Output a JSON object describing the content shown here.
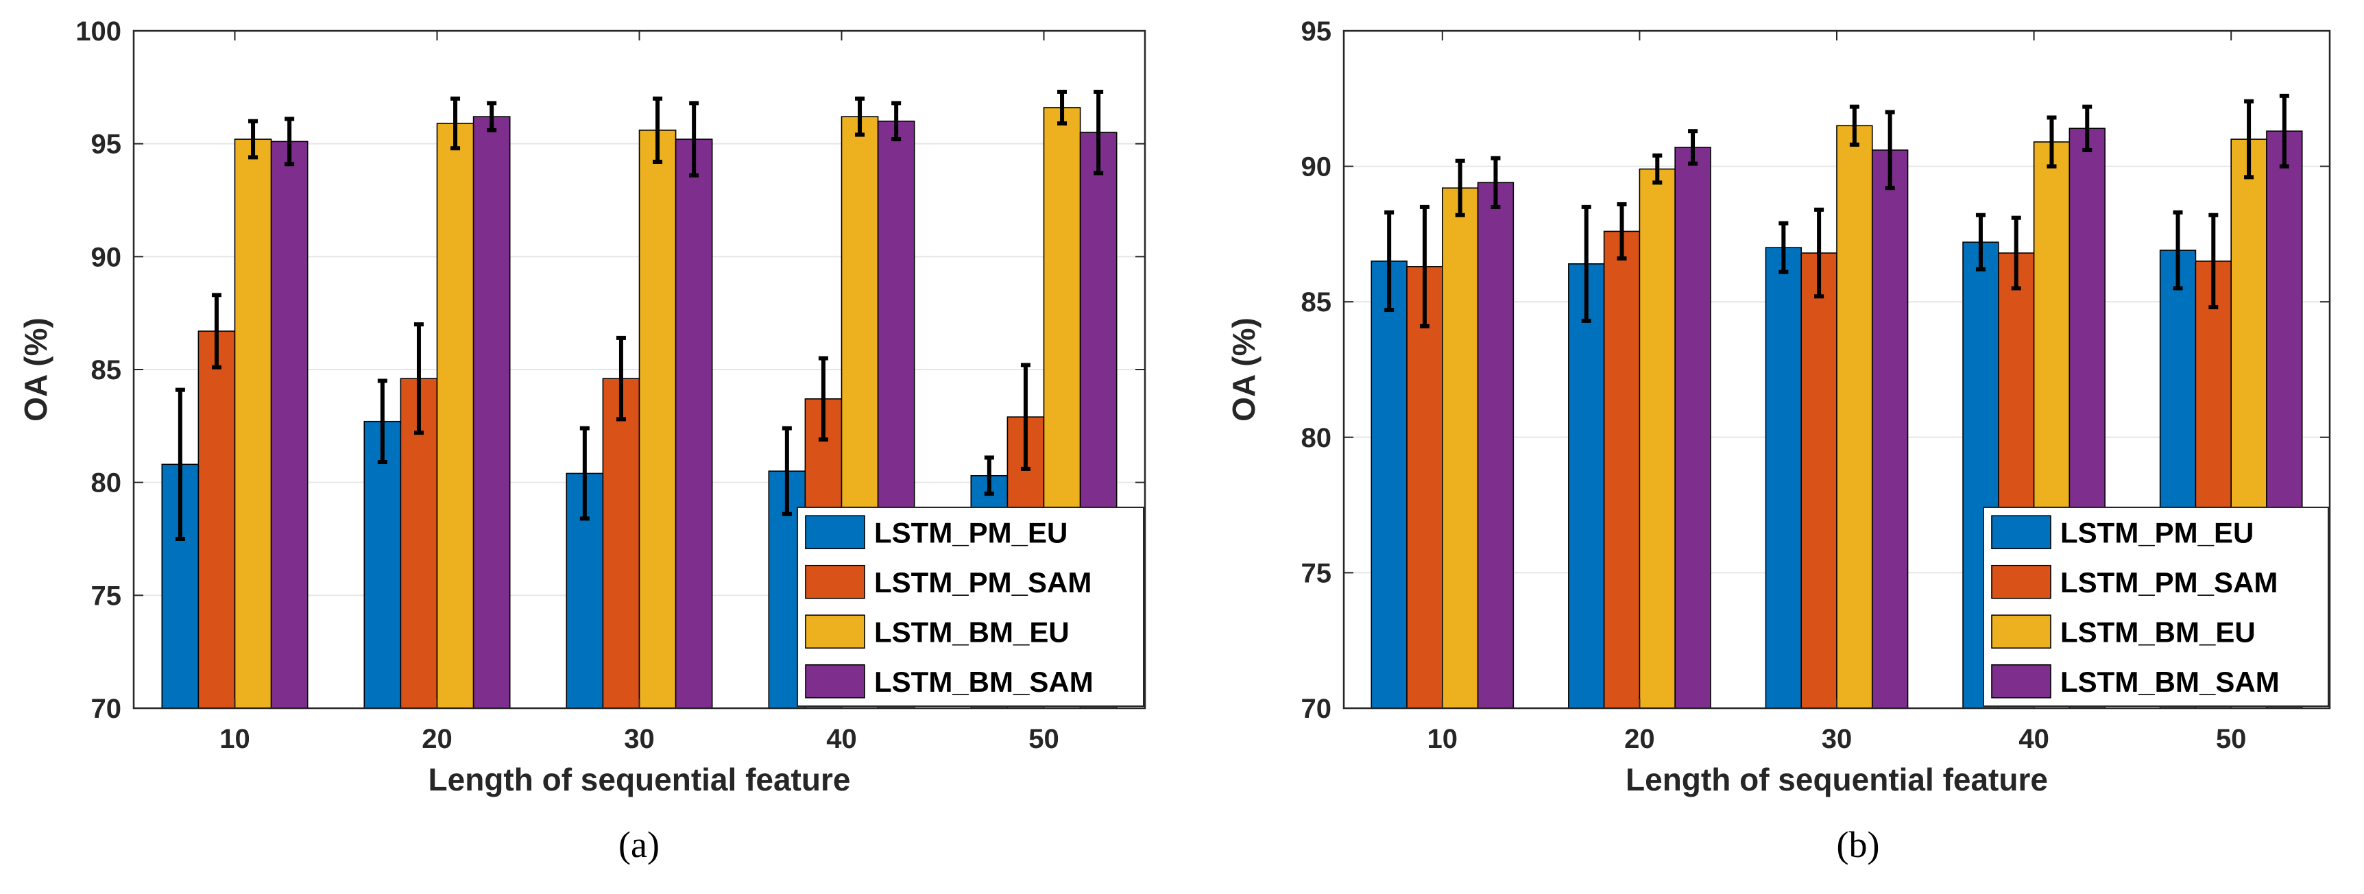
{
  "series_colors": [
    "#0072BD",
    "#D95319",
    "#EDB120",
    "#7E2F8E"
  ],
  "chart_data": [
    {
      "type": "bar",
      "panel": "(a)",
      "xlabel": "Length of sequential feature",
      "ylabel": "OA (%)",
      "categories": [
        "10",
        "20",
        "30",
        "40",
        "50"
      ],
      "ylim": [
        70,
        100
      ],
      "yticks": [
        70,
        75,
        80,
        85,
        90,
        95,
        100
      ],
      "grid": true,
      "legend_position": "bottom-right",
      "series": [
        {
          "name": "LSTM_PM_EU",
          "values": [
            80.8,
            82.7,
            80.4,
            80.5,
            80.3
          ],
          "err": [
            3.3,
            1.8,
            2.0,
            1.9,
            0.8
          ]
        },
        {
          "name": "LSTM_PM_SAM",
          "values": [
            86.7,
            84.6,
            84.6,
            83.7,
            82.9
          ],
          "err": [
            1.6,
            2.4,
            1.8,
            1.8,
            2.3
          ]
        },
        {
          "name": "LSTM_BM_EU",
          "values": [
            95.2,
            95.9,
            95.6,
            96.2,
            96.6
          ],
          "err": [
            0.8,
            1.1,
            1.4,
            0.8,
            0.7
          ]
        },
        {
          "name": "LSTM_BM_SAM",
          "values": [
            95.1,
            96.2,
            95.2,
            96.0,
            95.5
          ],
          "err": [
            1.0,
            0.6,
            1.6,
            0.8,
            1.8
          ]
        }
      ]
    },
    {
      "type": "bar",
      "panel": "(b)",
      "xlabel": "Length of sequential feature",
      "ylabel": "OA (%)",
      "categories": [
        "10",
        "20",
        "30",
        "40",
        "50"
      ],
      "ylim": [
        70,
        95
      ],
      "yticks": [
        70,
        75,
        80,
        85,
        90,
        95
      ],
      "grid": true,
      "legend_position": "bottom-right",
      "series": [
        {
          "name": "LSTM_PM_EU",
          "values": [
            86.5,
            86.4,
            87.0,
            87.2,
            86.9
          ],
          "err": [
            1.8,
            2.1,
            0.9,
            1.0,
            1.4
          ]
        },
        {
          "name": "LSTM_PM_SAM",
          "values": [
            86.3,
            87.6,
            86.8,
            86.8,
            86.5
          ],
          "err": [
            2.2,
            1.0,
            1.6,
            1.3,
            1.7
          ]
        },
        {
          "name": "LSTM_BM_EU",
          "values": [
            89.2,
            89.9,
            91.5,
            90.9,
            91.0
          ],
          "err": [
            1.0,
            0.5,
            0.7,
            0.9,
            1.4
          ]
        },
        {
          "name": "LSTM_BM_SAM",
          "values": [
            89.4,
            90.7,
            90.6,
            91.4,
            91.3
          ],
          "err": [
            0.9,
            0.6,
            1.4,
            0.8,
            1.3
          ]
        }
      ]
    }
  ]
}
